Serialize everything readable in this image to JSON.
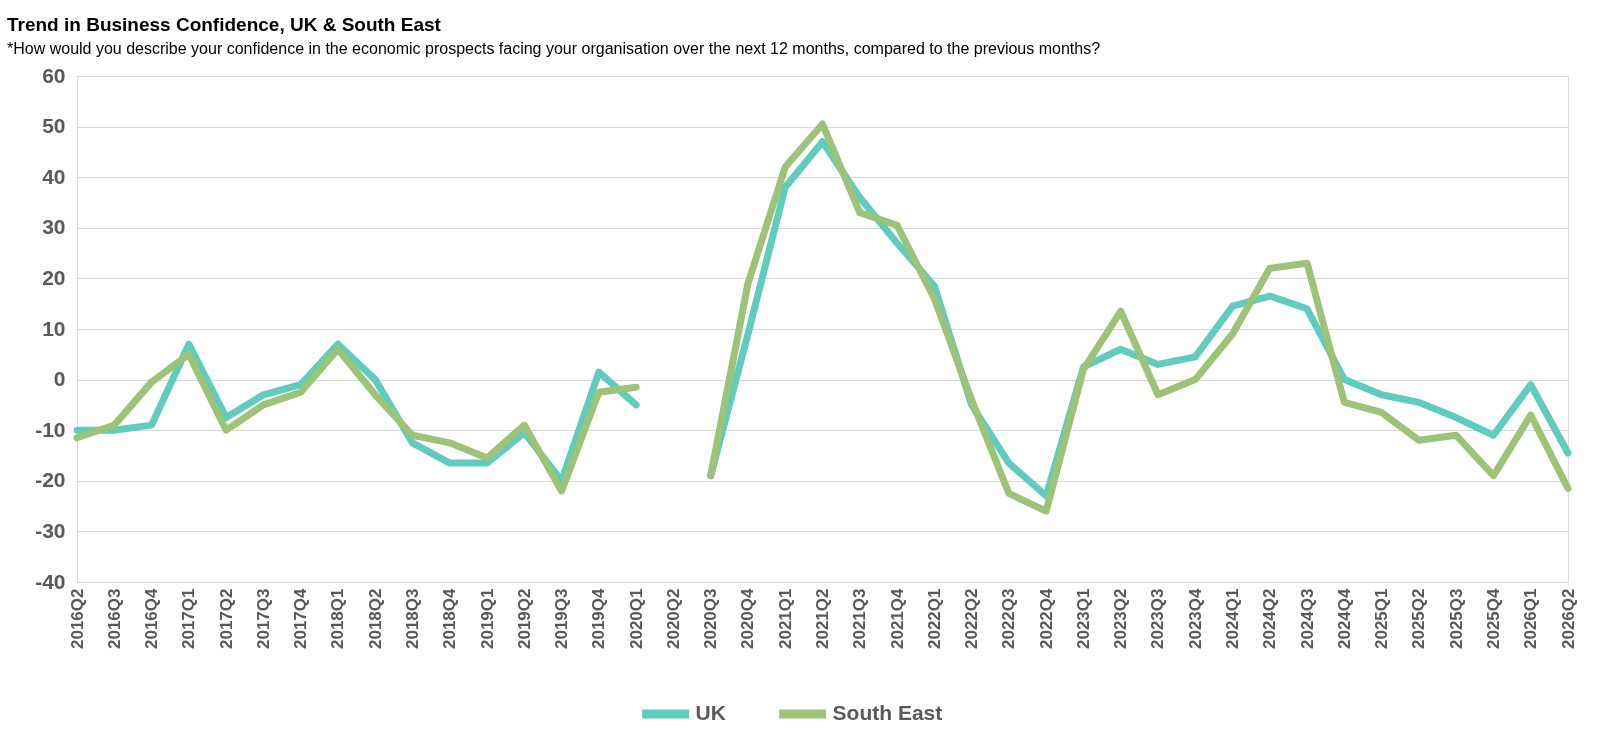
{
  "chart_data": {
    "type": "line",
    "title": "Trend in Business Confidence, UK & South East",
    "subtitle": "*How would you describe your confidence in the economic prospects facing your organisation over the next 12 months, compared to the previous months?",
    "categories": [
      "2016Q2",
      "2016Q3",
      "2016Q4",
      "2017Q1",
      "2017Q2",
      "2017Q3",
      "2017Q4",
      "2018Q1",
      "2018Q2",
      "2018Q3",
      "2018Q4",
      "2019Q1",
      "2019Q2",
      "2019Q3",
      "2019Q4",
      "2020Q1",
      "2020Q2",
      "2020Q3",
      "2020Q4",
      "2021Q1",
      "2021Q2",
      "2021Q3",
      "2021Q4",
      "2022Q1",
      "2022Q2",
      "2022Q3",
      "2022Q4",
      "2023Q1",
      "2023Q2",
      "2023Q3",
      "2023Q4",
      "2024Q1",
      "2024Q2",
      "2024Q3",
      "2024Q4",
      "2025Q1",
      "2025Q2",
      "2025Q3",
      "2025Q4",
      "2026Q1",
      "2026Q2"
    ],
    "series": [
      {
        "name": "UK",
        "color": "#5fccbe",
        "values": [
          -10,
          -10,
          -9,
          7,
          -7.5,
          -3,
          -1,
          7,
          0,
          -12.5,
          -16.5,
          -16.5,
          -10.5,
          -20,
          1.5,
          -5,
          null,
          -19,
          9,
          38,
          47,
          36,
          27,
          18.5,
          -5,
          -16.5,
          -23,
          2.5,
          6,
          3,
          4.5,
          14.5,
          16.5,
          14,
          0,
          -3,
          -4.5,
          -7.5,
          -11,
          -1,
          -14.5
        ]
      },
      {
        "name": "South East",
        "color": "#9cc378",
        "values": [
          -11.5,
          -9,
          -0.5,
          5,
          -10,
          -5,
          -2.5,
          6,
          -3,
          -11,
          -12.5,
          -15.5,
          -9,
          -22,
          -2.5,
          -1.5,
          null,
          -19,
          19,
          42,
          50.5,
          33,
          30.5,
          16,
          -4,
          -22.5,
          -26,
          2,
          13.5,
          -3,
          0,
          9,
          22,
          23,
          -4.5,
          -6.5,
          -12,
          -11,
          -19,
          -7,
          -21.5
        ]
      }
    ],
    "ylim": [
      -40,
      60
    ],
    "yticks": [
      -40,
      -30,
      -20,
      -10,
      0,
      10,
      20,
      30,
      40,
      50,
      60
    ],
    "grid": "y",
    "legend": "bottom",
    "line_style": "solid"
  }
}
